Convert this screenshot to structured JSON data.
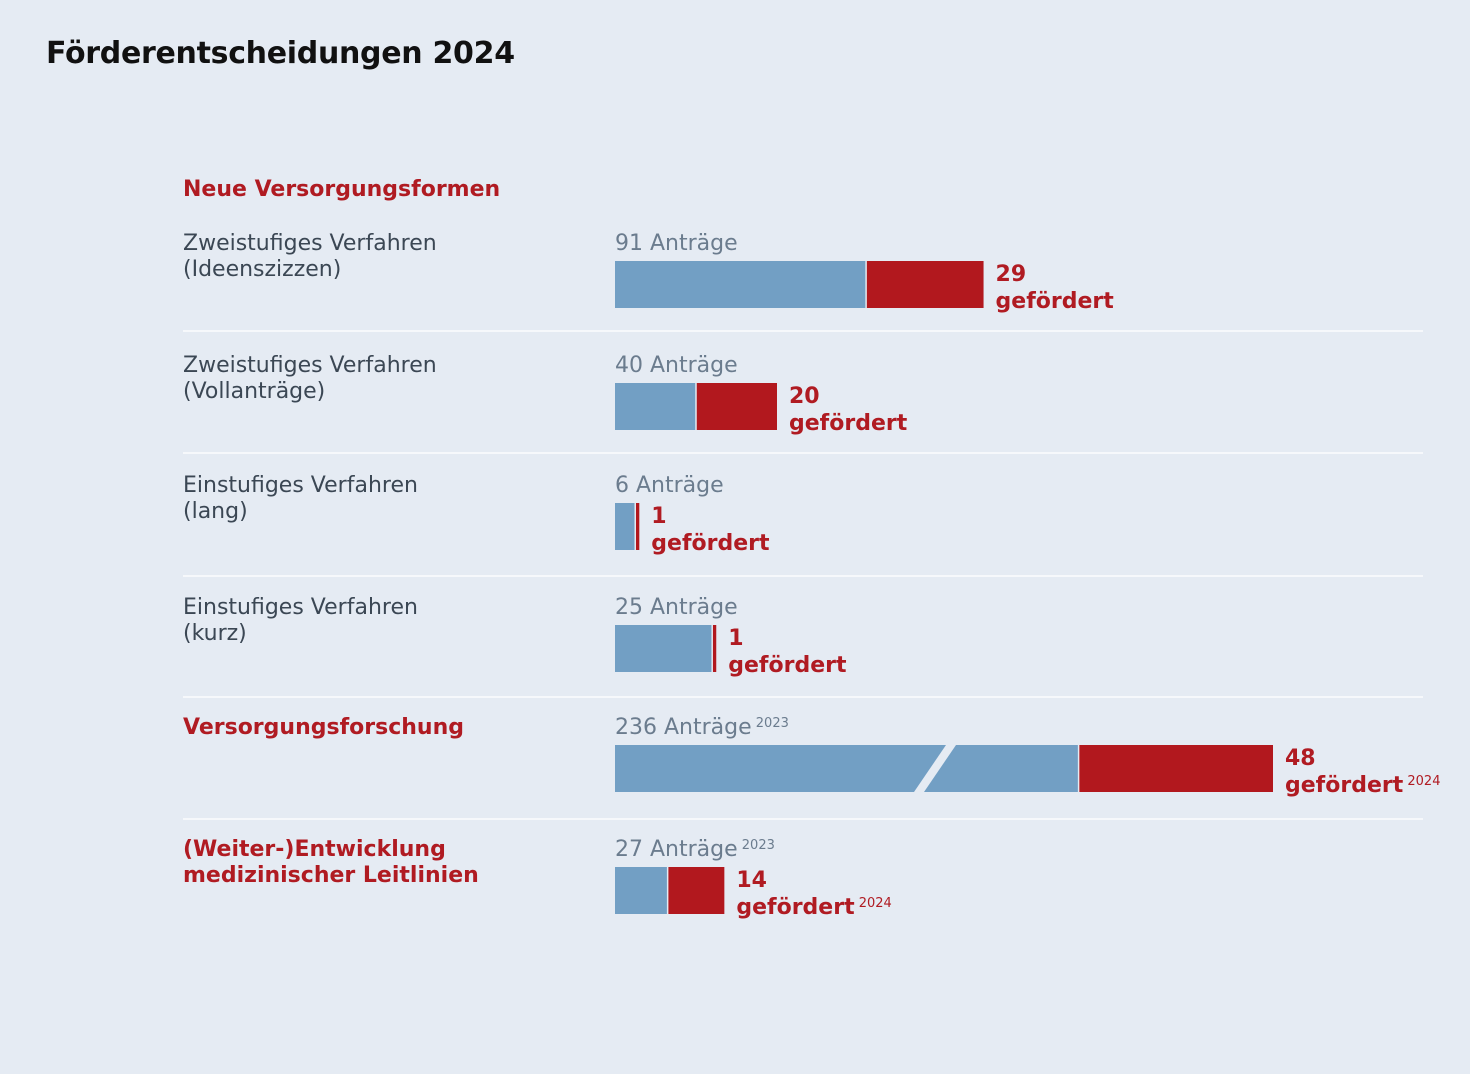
{
  "title": "Förderentscheidungen 2024",
  "colors": {
    "applications": "#729fc4",
    "funded": "#b2181e",
    "accent_text": "#b01b22"
  },
  "chart_data": {
    "type": "bar",
    "title": "Förderentscheidungen 2024",
    "section_heading": "Neue Versorgungsformen",
    "rows": [
      {
        "label": [
          "Zweistufiges Verfahren",
          "(Ideenszizzen)"
        ],
        "highlight": false,
        "applications": 91,
        "funded": 29,
        "app_text": "91 Anträge",
        "app_sup": "",
        "num_text": "29",
        "gef_text": "gefördert",
        "gef_sup": "",
        "broken_axis": false
      },
      {
        "label": [
          "Zweistufiges Verfahren",
          "(Vollanträge)"
        ],
        "highlight": false,
        "applications": 40,
        "funded": 20,
        "app_text": "40 Anträge",
        "app_sup": "",
        "num_text": "20",
        "gef_text": "gefördert",
        "gef_sup": "",
        "broken_axis": false
      },
      {
        "label": [
          "Einstufiges Verfahren",
          "(lang)"
        ],
        "highlight": false,
        "applications": 6,
        "funded": 1,
        "app_text": "6 Anträge",
        "app_sup": "",
        "num_text": "1",
        "gef_text": "gefördert",
        "gef_sup": "",
        "broken_axis": false
      },
      {
        "label": [
          "Einstufiges Verfahren",
          "(kurz)"
        ],
        "highlight": false,
        "applications": 25,
        "funded": 1,
        "app_text": "25 Anträge",
        "app_sup": "",
        "num_text": "1",
        "gef_text": "gefördert",
        "gef_sup": "",
        "broken_axis": false
      },
      {
        "label": [
          "Versorgungsforschung"
        ],
        "highlight": true,
        "applications": 236,
        "funded": 48,
        "app_text": "236 Anträge",
        "app_sup": "2023",
        "num_text": "48",
        "gef_text": "gefördert",
        "gef_sup": "2024",
        "broken_axis": true
      },
      {
        "label": [
          "(Weiter-)Entwicklung",
          "medizinischer Leitlinien"
        ],
        "highlight": true,
        "applications": 27,
        "funded": 14,
        "app_text": "27 Anträge",
        "app_sup": "2023",
        "num_text": "14",
        "gef_text": "gefördert",
        "gef_sup": "2024",
        "broken_axis": false
      }
    ]
  }
}
